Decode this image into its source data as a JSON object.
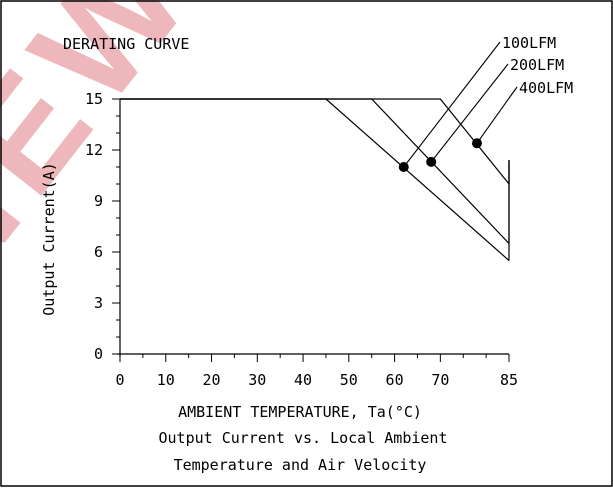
{
  "chart_data": {
    "type": "line",
    "title": "DERATING CURVE",
    "xlabel": "AMBIENT TEMPERATURE, Ta(°C)",
    "ylabel": "Output Current(A)",
    "caption_lines": [
      "Output Current vs. Local Ambient",
      "Temperature and Air Velocity"
    ],
    "xlim": [
      0,
      85
    ],
    "ylim": [
      0,
      15
    ],
    "x_ticks": [
      0,
      10,
      20,
      30,
      40,
      50,
      60,
      70,
      85
    ],
    "y_ticks": [
      0,
      3,
      6,
      9,
      12,
      15
    ],
    "grid": false,
    "series": [
      {
        "name": "100LFM",
        "points": [
          [
            0,
            15
          ],
          [
            45,
            15
          ],
          [
            85,
            5.5
          ]
        ],
        "marker": [
          62,
          11.0
        ]
      },
      {
        "name": "200LFM",
        "points": [
          [
            0,
            15
          ],
          [
            55,
            15
          ],
          [
            85,
            6.5
          ]
        ],
        "marker": [
          68,
          11.3
        ]
      },
      {
        "name": "400LFM",
        "points": [
          [
            0,
            15
          ],
          [
            70,
            15
          ],
          [
            85,
            10
          ]
        ],
        "marker": [
          78,
          12.4
        ]
      }
    ],
    "colors": {
      "line": "#000000",
      "watermark": "#e8a0a6"
    },
    "watermark": "NEW"
  }
}
